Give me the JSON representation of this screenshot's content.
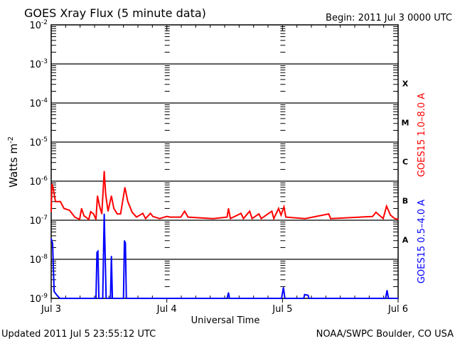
{
  "chart_data": {
    "type": "line",
    "title": "GOES Xray Flux (5 minute data)",
    "begin": "Begin:  2011 Jul 3 0000 UTC",
    "ylabel": "Watts m",
    "ylabel_sup": "-2",
    "xlabel": "Universal Time",
    "yscale": "log",
    "ylim": [
      1e-09,
      0.01
    ],
    "xlim_hours": [
      0,
      72
    ],
    "x_ticks": [
      {
        "hour": 0,
        "label": "Jul 3"
      },
      {
        "hour": 24,
        "label": "Jul 4"
      },
      {
        "hour": 48,
        "label": "Jul 5"
      },
      {
        "hour": 72,
        "label": "Jul 6"
      }
    ],
    "y_ticks": [
      {
        "exp": -2,
        "base": "10",
        "sup": "-2"
      },
      {
        "exp": -3,
        "base": "10",
        "sup": "-3"
      },
      {
        "exp": -4,
        "base": "10",
        "sup": "-4"
      },
      {
        "exp": -5,
        "base": "10",
        "sup": "-5"
      },
      {
        "exp": -6,
        "base": "10",
        "sup": "-6"
      },
      {
        "exp": -7,
        "base": "10",
        "sup": "-7"
      },
      {
        "exp": -8,
        "base": "10",
        "sup": "-8"
      },
      {
        "exp": -9,
        "base": "10",
        "sup": "-9"
      }
    ],
    "flare_classes": [
      {
        "label": "X",
        "exp": -3.5
      },
      {
        "label": "M",
        "exp": -4.5
      },
      {
        "label": "C",
        "exp": -5.5
      },
      {
        "label": "B",
        "exp": -6.5
      },
      {
        "label": "A",
        "exp": -7.5
      }
    ],
    "grid": true,
    "series": [
      {
        "name": "GOES15 1.0–8.0 A",
        "color": "#ff0000",
        "points": [
          [
            0,
            1.65e-07
          ],
          [
            0.15,
            8.5e-07
          ],
          [
            0.44,
            6.3e-07
          ],
          [
            0.88,
            3e-07
          ],
          [
            1.9,
            3e-07
          ],
          [
            2.65,
            2e-07
          ],
          [
            3.8,
            1.8e-07
          ],
          [
            4.9,
            1.2e-07
          ],
          [
            5.9,
            1.05e-07
          ],
          [
            6.3,
            2e-07
          ],
          [
            6.8,
            1.3e-07
          ],
          [
            7.8,
            1.05e-07
          ],
          [
            8.2,
            1.65e-07
          ],
          [
            8.8,
            1.45e-07
          ],
          [
            9.3,
            1.05e-07
          ],
          [
            9.6,
            4.2e-07
          ],
          [
            10.0,
            2.4e-07
          ],
          [
            10.5,
            1.45e-07
          ],
          [
            11.0,
            1.8e-06
          ],
          [
            11.3,
            4.7e-07
          ],
          [
            11.8,
            1.7e-07
          ],
          [
            12.5,
            4.2e-07
          ],
          [
            13.0,
            2e-07
          ],
          [
            13.7,
            1.45e-07
          ],
          [
            14.4,
            1.45e-07
          ],
          [
            15.3,
            6.9e-07
          ],
          [
            15.9,
            3e-07
          ],
          [
            16.8,
            1.6e-07
          ],
          [
            17.7,
            1.2e-07
          ],
          [
            18.4,
            1.35e-07
          ],
          [
            19.0,
            1.5e-07
          ],
          [
            19.6,
            1.1e-07
          ],
          [
            20.6,
            1.5e-07
          ],
          [
            21.1,
            1.25e-07
          ],
          [
            22.5,
            1.1e-07
          ],
          [
            24,
            1.25e-07
          ],
          [
            24.7,
            1.2e-07
          ],
          [
            26.9,
            1.2e-07
          ],
          [
            27.7,
            1.7e-07
          ],
          [
            28.4,
            1.2e-07
          ],
          [
            33.6,
            1.1e-07
          ],
          [
            36.5,
            1.2e-07
          ],
          [
            36.8,
            2e-07
          ],
          [
            37.2,
            1.1e-07
          ],
          [
            39.4,
            1.5e-07
          ],
          [
            39.9,
            1.1e-07
          ],
          [
            41.2,
            1.7e-07
          ],
          [
            41.7,
            1.1e-07
          ],
          [
            43.1,
            1.45e-07
          ],
          [
            43.6,
            1.1e-07
          ],
          [
            45.8,
            1.7e-07
          ],
          [
            46.2,
            1.1e-07
          ],
          [
            47.2,
            2e-07
          ],
          [
            47.7,
            1.35e-07
          ],
          [
            48.3,
            2.2e-07
          ],
          [
            48.7,
            1.2e-07
          ],
          [
            52.7,
            1.1e-07
          ],
          [
            57.6,
            1.45e-07
          ],
          [
            58.0,
            1.1e-07
          ],
          [
            66.7,
            1.25e-07
          ],
          [
            67.4,
            1.6e-07
          ],
          [
            68.9,
            1.1e-07
          ],
          [
            69.6,
            2.3e-07
          ],
          [
            70.4,
            1.35e-07
          ],
          [
            71.3,
            1.1e-07
          ],
          [
            72,
            1.05e-07
          ]
        ]
      },
      {
        "name": "GOES15 0.5–4.0 A",
        "color": "#0000ff",
        "points": [
          [
            0,
            3.4e-08
          ],
          [
            0.3,
            2.5e-08
          ],
          [
            0.6,
            1.5e-09
          ],
          [
            1.2,
            1.2e-09
          ],
          [
            1.8,
            1e-09
          ],
          [
            9.3,
            1e-09
          ],
          [
            9.5,
            1.5e-08
          ],
          [
            9.7,
            1.6e-08
          ],
          [
            9.9,
            1e-09
          ],
          [
            10.7,
            1e-09
          ],
          [
            10.9,
            3e-08
          ],
          [
            11.0,
            1.45e-07
          ],
          [
            11.2,
            1.3e-08
          ],
          [
            11.4,
            1e-09
          ],
          [
            12.3,
            1e-09
          ],
          [
            12.5,
            1.2e-08
          ],
          [
            12.7,
            1e-09
          ],
          [
            15.0,
            1e-09
          ],
          [
            15.2,
            3e-08
          ],
          [
            15.4,
            2.6e-08
          ],
          [
            15.6,
            1e-09
          ],
          [
            36.5,
            1e-09
          ],
          [
            36.8,
            1.4e-09
          ],
          [
            37.0,
            1e-09
          ],
          [
            47.8,
            1e-09
          ],
          [
            48.2,
            1.9e-09
          ],
          [
            48.5,
            1e-09
          ],
          [
            52.4,
            1e-09
          ],
          [
            52.6,
            1.25e-09
          ],
          [
            53.3,
            1.2e-09
          ],
          [
            53.5,
            1e-09
          ],
          [
            69.4,
            1e-09
          ],
          [
            69.7,
            1.6e-09
          ],
          [
            70.0,
            1e-09
          ],
          [
            72,
            1e-09
          ]
        ]
      }
    ]
  },
  "footer": {
    "updated": "Updated 2011 Jul  5 23:55:12 UTC",
    "credit": "NOAA/SWPC Boulder, CO USA"
  }
}
